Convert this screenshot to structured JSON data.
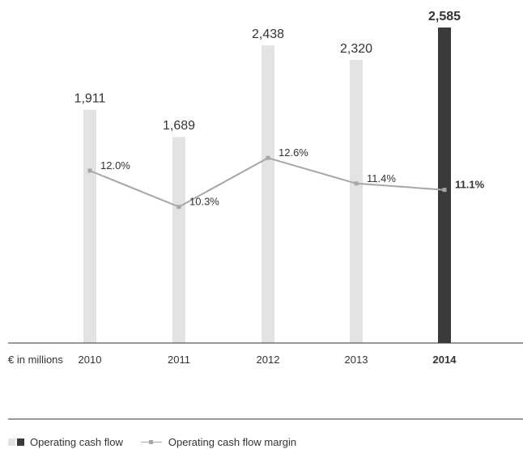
{
  "chart_data": {
    "type": "bar",
    "unit_label": "€ in millions",
    "categories": [
      "2010",
      "2011",
      "2012",
      "2013",
      "2014"
    ],
    "highlight_category": "2014",
    "series": [
      {
        "name": "Operating cash flow",
        "type": "bar",
        "values": [
          1911,
          1689,
          2438,
          2320,
          2585
        ],
        "labels": [
          "1,911",
          "1,689",
          "2,438",
          "2,320",
          "2,585"
        ]
      },
      {
        "name": "Operating cash flow margin",
        "type": "line",
        "unit": "%",
        "values": [
          12.0,
          10.3,
          12.6,
          11.4,
          11.1
        ],
        "labels": [
          "12.0%",
          "10.3%",
          "12.6%",
          "11.4%",
          "11.1%"
        ]
      }
    ],
    "colors": {
      "bar": "#e3e3e3",
      "bar_highlight": "#3a3a3a",
      "line": "#a7a7a7",
      "axis": "#333333"
    }
  },
  "legend": {
    "bar_label": "Operating cash flow",
    "line_label": "Operating cash flow margin"
  }
}
